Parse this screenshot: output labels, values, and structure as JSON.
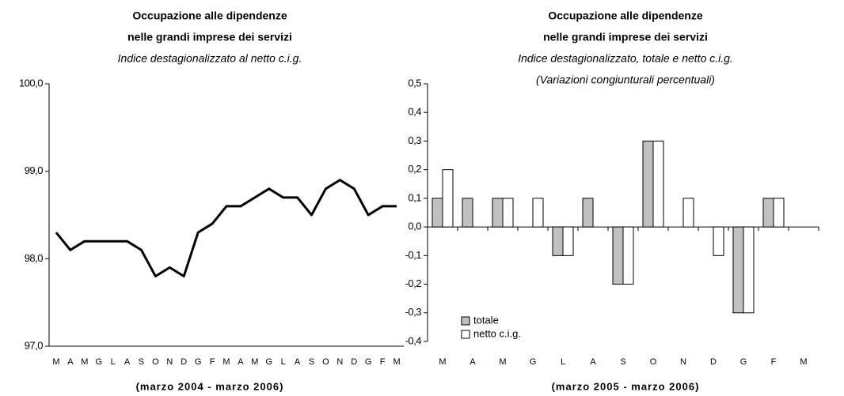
{
  "chart_data": [
    {
      "type": "line",
      "title": [
        "Occupazione alle dipendenze",
        "nelle grandi imprese dei servizi"
      ],
      "subtitle": [
        "Indice destagionalizzato al netto c.i.g."
      ],
      "xlabel": "(marzo 2004 - marzo 2006)",
      "categories": [
        "M",
        "A",
        "M",
        "G",
        "L",
        "A",
        "S",
        "O",
        "N",
        "D",
        "G",
        "F",
        "M",
        "A",
        "M",
        "G",
        "L",
        "A",
        "S",
        "O",
        "N",
        "D",
        "G",
        "F",
        "M"
      ],
      "series": [
        {
          "color": "#000000",
          "values": [
            98.3,
            98.1,
            98.2,
            98.2,
            98.2,
            98.2,
            98.1,
            97.8,
            97.9,
            97.8,
            98.3,
            98.4,
            98.6,
            98.6,
            98.7,
            98.8,
            98.7,
            98.7,
            98.5,
            98.8,
            98.9,
            98.8,
            98.5,
            98.6,
            98.6
          ]
        }
      ],
      "ylim": [
        97,
        100
      ],
      "yticks": [
        {
          "value": 97,
          "label": "97,0"
        },
        {
          "value": 98,
          "label": "98,0"
        },
        {
          "value": 99,
          "label": "99,0"
        },
        {
          "value": 100,
          "label": "100,0"
        }
      ]
    },
    {
      "type": "bar",
      "title": [
        "Occupazione alle dipendenze",
        "nelle grandi imprese dei servizi"
      ],
      "subtitle": [
        "Indice destagionalizzato, totale e netto c.i.g.",
        "(Variazioni congiunturali  percentuali)"
      ],
      "xlabel": "(marzo 2005 - marzo 2006)",
      "categories": [
        "M",
        "A",
        "M",
        "G",
        "L",
        "A",
        "S",
        "O",
        "N",
        "D",
        "G",
        "F",
        "M"
      ],
      "series": [
        {
          "name": "totale",
          "color": "#c0c0c0",
          "values": [
            0.1,
            0.1,
            0.1,
            0,
            -0.1,
            0.1,
            -0.2,
            0.3,
            0,
            0,
            -0.3,
            0.1,
            0
          ]
        },
        {
          "name": "netto c.i.g.",
          "color": "#ffffff",
          "values": [
            0.2,
            0,
            0.1,
            0.1,
            -0.1,
            0,
            -0.2,
            0.3,
            0.1,
            -0.1,
            -0.3,
            0.1,
            0
          ]
        }
      ],
      "ylim": [
        -0.4,
        0.5
      ],
      "yticks": [
        {
          "value": -0.4,
          "label": "-0,4"
        },
        {
          "value": -0.3,
          "label": "-0,3"
        },
        {
          "value": -0.2,
          "label": "-0,2"
        },
        {
          "value": -0.1,
          "label": "-0,1"
        },
        {
          "value": 0,
          "label": "0,0"
        },
        {
          "value": 0.1,
          "label": "0,1"
        },
        {
          "value": 0.2,
          "label": "0,2"
        },
        {
          "value": 0.3,
          "label": "0,3"
        },
        {
          "value": 0.4,
          "label": "0,4"
        },
        {
          "value": 0.5,
          "label": "0,5"
        }
      ],
      "legend": "lower left"
    }
  ]
}
